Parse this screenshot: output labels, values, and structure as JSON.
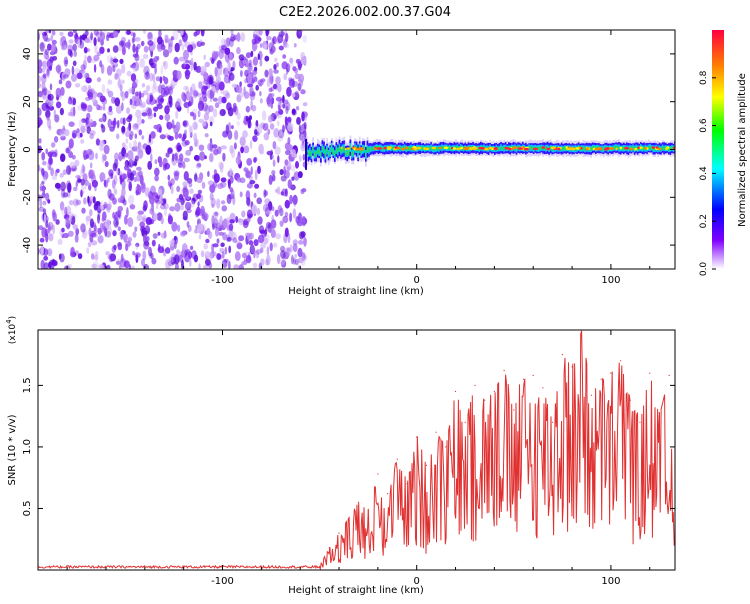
{
  "title": "C2E2.2026.002.00.37.G04",
  "chart_data": [
    {
      "type": "heatmap",
      "name": "spectrogram",
      "xlabel": "Height of straight line (km)",
      "ylabel": "Frequency (Hz)",
      "xlim": [
        -195,
        133
      ],
      "ylim": [
        -50,
        50
      ],
      "xticks": [
        -100,
        0,
        100
      ],
      "xtick_labels": [
        "-100",
        "0",
        "100"
      ],
      "yticks": [
        -40,
        -20,
        0,
        20,
        40
      ],
      "ytick_labels": [
        "-40",
        "-20",
        "0",
        "20",
        "40"
      ],
      "noise_region_x": [
        -195,
        -57
      ],
      "signal_line_frequency_hz": 0.5,
      "colorbar": {
        "label": "Normalized spectral amplitude",
        "range": [
          0,
          1
        ],
        "ticks": [
          0,
          0.2,
          0.4,
          0.6,
          0.8
        ],
        "tick_labels": [
          "0.0",
          "0.2",
          "0.4",
          "0.6",
          "0.8"
        ],
        "colors": [
          "#ffffff",
          "#8000ff",
          "#0000ff",
          "#00ffff",
          "#00ff00",
          "#ffff00",
          "#ff8000",
          "#ff0040"
        ]
      }
    },
    {
      "type": "line",
      "name": "snr",
      "xlabel": "Height of straight line (km)",
      "ylabel": "SNR (10 * v/v)",
      "y_multiplier": "(x10",
      "y_multiplier_exp": "4",
      "y_multiplier_close": ")",
      "xlim": [
        -195,
        133
      ],
      "ylim": [
        0,
        1.95
      ],
      "xticks": [
        -100,
        0,
        100
      ],
      "xtick_labels": [
        "-100",
        "0",
        "100"
      ],
      "yticks": [
        0.5,
        1.0,
        1.5
      ],
      "ytick_labels": [
        "0.5",
        "1.0",
        "1.5"
      ],
      "line_color": "#e03030",
      "series": [
        {
          "name": "SNR",
          "x": [
            -195,
            -180,
            -160,
            -140,
            -120,
            -100,
            -80,
            -60,
            -50,
            -45,
            -40,
            -35,
            -30,
            -25,
            -20,
            -15,
            -10,
            -5,
            0,
            5,
            10,
            15,
            20,
            25,
            30,
            35,
            40,
            45,
            50,
            55,
            60,
            65,
            70,
            75,
            80,
            85,
            90,
            95,
            100,
            105,
            110,
            115,
            120,
            125,
            130,
            133
          ],
          "values": [
            0.02,
            0.03,
            0.02,
            0.03,
            0.02,
            0.02,
            0.03,
            0.02,
            0.03,
            0.18,
            0.3,
            0.42,
            0.55,
            0.48,
            0.78,
            0.62,
            0.9,
            0.7,
            1.08,
            0.85,
            1.12,
            1.0,
            1.45,
            1.2,
            1.5,
            1.38,
            1.45,
            1.62,
            1.3,
            1.55,
            1.58,
            1.48,
            1.2,
            1.75,
            1.65,
            1.95,
            1.42,
            1.55,
            1.6,
            1.7,
            1.38,
            1.2,
            1.6,
            1.25,
            1.58,
            0.12
          ]
        }
      ]
    }
  ]
}
